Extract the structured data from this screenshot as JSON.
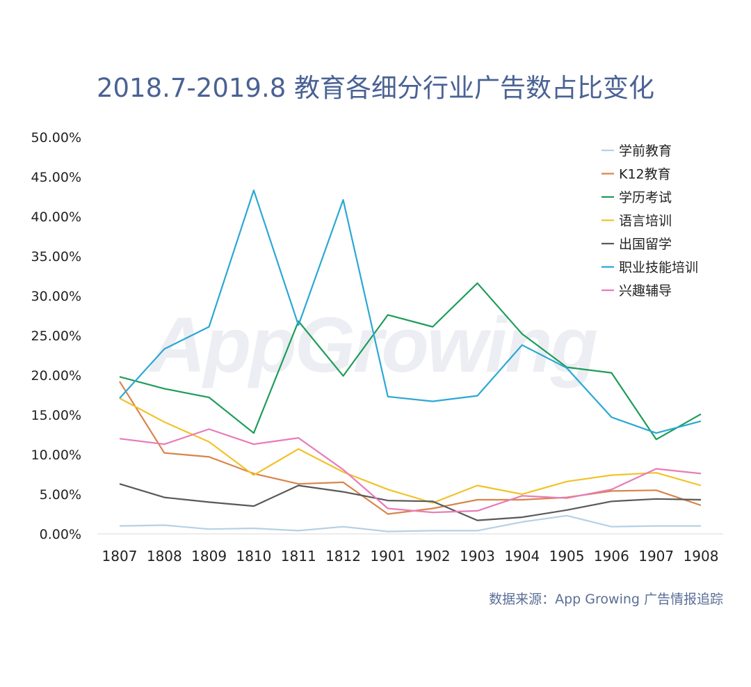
{
  "chart_data": {
    "type": "line",
    "title": "2018.7-2019.8 教育各细分行业广告数占比变化",
    "xlabel": "",
    "ylabel": "",
    "ylim": [
      0,
      50
    ],
    "y_ticks": [
      "0.00%",
      "5.00%",
      "10.00%",
      "15.00%",
      "20.00%",
      "25.00%",
      "30.00%",
      "35.00%",
      "40.00%",
      "45.00%",
      "50.00%"
    ],
    "categories": [
      "1807",
      "1808",
      "1809",
      "1810",
      "1811",
      "1812",
      "1901",
      "1902",
      "1903",
      "1904",
      "1905",
      "1906",
      "1907",
      "1908"
    ],
    "legend_position": "top-right",
    "grid": false,
    "series": [
      {
        "name": "学前教育",
        "color": "#b7d0e3",
        "values": [
          1.0,
          1.1,
          0.6,
          0.7,
          0.4,
          0.9,
          0.3,
          0.4,
          0.4,
          1.5,
          2.3,
          0.9,
          1.0,
          1.0
        ]
      },
      {
        "name": "K12教育",
        "color": "#d9844a",
        "values": [
          19.2,
          10.2,
          9.7,
          7.6,
          6.3,
          6.5,
          2.5,
          3.2,
          4.3,
          4.3,
          4.6,
          5.4,
          5.5,
          3.6
        ]
      },
      {
        "name": "学历考试",
        "color": "#1e9c5a",
        "values": [
          19.8,
          18.3,
          17.2,
          12.7,
          26.8,
          19.9,
          27.6,
          26.1,
          31.6,
          25.2,
          21.0,
          20.3,
          11.9,
          15.1
        ]
      },
      {
        "name": "语言培训",
        "color": "#f2c22a",
        "values": [
          17.1,
          14.1,
          11.6,
          7.4,
          10.7,
          7.8,
          5.6,
          3.9,
          6.1,
          5.0,
          6.6,
          7.4,
          7.7,
          6.1
        ]
      },
      {
        "name": "出国留学",
        "color": "#595959",
        "values": [
          6.3,
          4.6,
          4.0,
          3.5,
          6.1,
          5.3,
          4.2,
          4.1,
          1.7,
          2.1,
          3.0,
          4.1,
          4.4,
          4.3
        ]
      },
      {
        "name": "职业技能培训",
        "color": "#2aa8d4",
        "values": [
          17.1,
          23.3,
          26.1,
          43.3,
          26.3,
          42.1,
          17.3,
          16.7,
          17.4,
          23.8,
          20.9,
          14.7,
          12.7,
          14.2
        ]
      },
      {
        "name": "兴趣辅导",
        "color": "#e87bb8",
        "values": [
          12.0,
          11.3,
          13.2,
          11.3,
          12.1,
          8.1,
          3.2,
          2.7,
          2.9,
          4.8,
          4.5,
          5.6,
          8.2,
          7.6
        ]
      }
    ]
  },
  "source": "数据来源：App Growing 广告情报追踪",
  "watermark": "AppGrowing"
}
